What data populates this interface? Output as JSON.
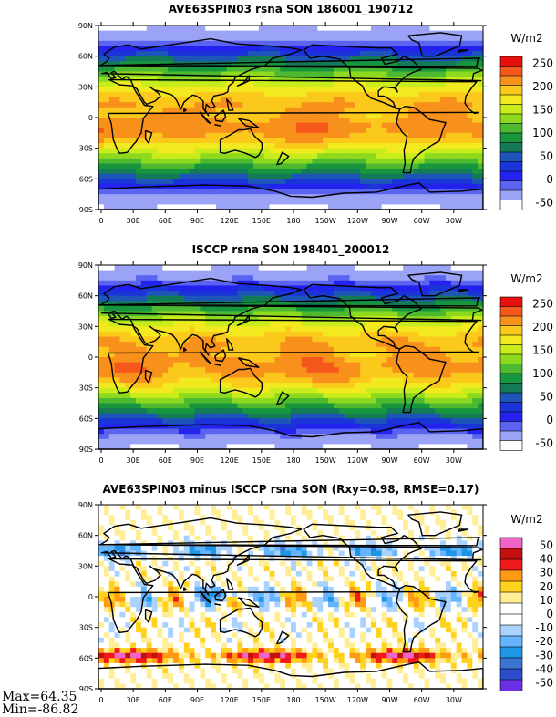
{
  "panels": [
    {
      "title": "AVE63SPIN03 rsna SON 186001_190712",
      "units": "W/m2",
      "colorbar": {
        "labels": [
          "250",
          "200",
          "150",
          "100",
          "50",
          "0",
          "-50"
        ],
        "colors": [
          "#e8100c",
          "#f5581a",
          "#f8901c",
          "#fbc81c",
          "#f2ea1e",
          "#c8ec1c",
          "#8cd91e",
          "#4cb931",
          "#17963d",
          "#137a55",
          "#1e55b8",
          "#1a34d8",
          "#2322ef",
          "#5a64f0",
          "#9ba3f6",
          "#ffffff"
        ]
      },
      "field": "model"
    },
    {
      "title": "ISCCP rsna SON 198401_200012",
      "units": "W/m2",
      "colorbar": {
        "labels": [
          "250",
          "200",
          "150",
          "100",
          "50",
          "0",
          "-50"
        ],
        "colors": [
          "#e8100c",
          "#f5581a",
          "#f8901c",
          "#fbc81c",
          "#f2ea1e",
          "#c8ec1c",
          "#8cd91e",
          "#4cb931",
          "#17963d",
          "#137a55",
          "#1e55b8",
          "#1a34d8",
          "#2322ef",
          "#5a64f0",
          "#9ba3f6",
          "#ffffff"
        ]
      },
      "field": "obs"
    },
    {
      "title": "AVE63SPIN03 minus ISCCP rsna SON (Rxy=0.98, RMSE=0.17)",
      "units": "W/m2",
      "colorbar": {
        "labels": [
          "50",
          "40",
          "30",
          "20",
          "10",
          "0",
          "-10",
          "-20",
          "-30",
          "-40",
          "-50"
        ],
        "colors": [
          "#f063c8",
          "#c01010",
          "#f01818",
          "#ff9a14",
          "#ffd21e",
          "#ffee96",
          "#ffffff",
          "#ffffff",
          "#aad2ff",
          "#64b4ff",
          "#1e96e6",
          "#3c74d2",
          "#2c4ccc",
          "#6b30e6"
        ]
      },
      "field": "diff"
    }
  ],
  "lat_ticks": [
    "90N",
    "60N",
    "30N",
    "0",
    "30S",
    "60S",
    "90S"
  ],
  "lon_ticks": [
    "0",
    "30E",
    "60E",
    "90E",
    "120E",
    "150E",
    "180",
    "150W",
    "120W",
    "90W",
    "60W",
    "30W"
  ],
  "stats": {
    "max": "Max=64.35",
    "min": "Min=-86.82"
  }
}
